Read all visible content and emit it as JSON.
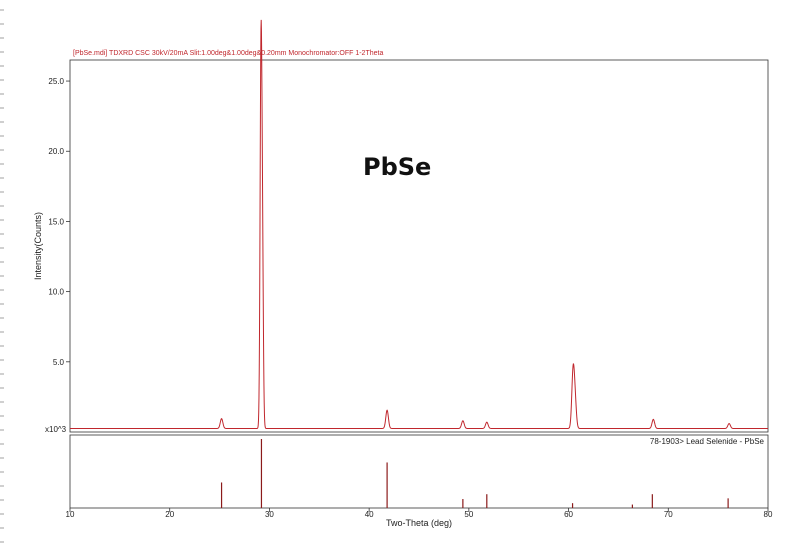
{
  "header": "[PbSe.mdi] TDXRD CSC 30kV/20mA Slit:1.00deg&1.00deg&0.20mm Monochromator:OFF 1-2Theta",
  "colors": {
    "pattern": "#c0272d",
    "reference": "#8b1a1a",
    "frame": "#333333",
    "header": "#c0272d"
  },
  "chart_data": {
    "type": "line",
    "title": "PbSe",
    "xlabel": "Two-Theta (deg)",
    "ylabel": "Intensity(Counts)",
    "y_unit_label": "x10^3",
    "xlim": [
      10,
      80
    ],
    "ylim": [
      0,
      26.5
    ],
    "x_ticks": [
      10,
      20,
      30,
      40,
      50,
      60,
      70,
      80
    ],
    "y_ticks": [
      5.0,
      10.0,
      15.0,
      20.0,
      25.0
    ],
    "baseline": 0.25,
    "peaks": [
      {
        "x": 25.2,
        "y": 0.7
      },
      {
        "x": 29.15,
        "y": 25.5
      },
      {
        "x": 29.3,
        "y": 12.0
      },
      {
        "x": 41.8,
        "y": 1.3
      },
      {
        "x": 49.4,
        "y": 0.55
      },
      {
        "x": 51.8,
        "y": 0.45
      },
      {
        "x": 60.45,
        "y": 3.9
      },
      {
        "x": 60.65,
        "y": 1.9
      },
      {
        "x": 68.5,
        "y": 0.65
      },
      {
        "x": 76.1,
        "y": 0.35
      }
    ],
    "reference": {
      "label": "78-1903> Lead Selenide - PbSe",
      "sticks": [
        {
          "x": 25.2,
          "rel": 0.37
        },
        {
          "x": 29.2,
          "rel": 1.0
        },
        {
          "x": 41.8,
          "rel": 0.66
        },
        {
          "x": 49.4,
          "rel": 0.13
        },
        {
          "x": 51.8,
          "rel": 0.2
        },
        {
          "x": 60.4,
          "rel": 0.07
        },
        {
          "x": 66.4,
          "rel": 0.05
        },
        {
          "x": 68.4,
          "rel": 0.2
        },
        {
          "x": 76.0,
          "rel": 0.14
        }
      ]
    }
  }
}
